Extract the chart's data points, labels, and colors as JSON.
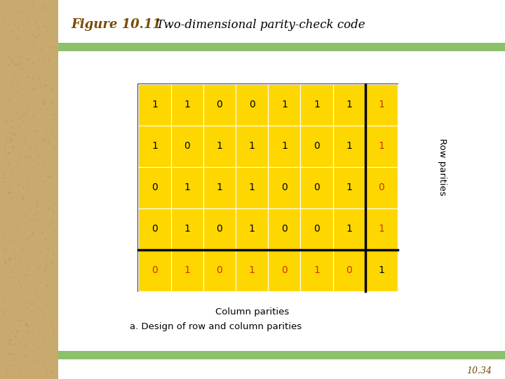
{
  "title_figure": "Figure 10.11",
  "title_desc": "Two-dimensional parity-check code",
  "page_number": "10.34",
  "caption": "a. Design of row and column parities",
  "data_rows": [
    [
      1,
      1,
      0,
      0,
      1,
      1,
      1
    ],
    [
      1,
      0,
      1,
      1,
      1,
      0,
      1
    ],
    [
      0,
      1,
      1,
      1,
      0,
      0,
      1
    ],
    [
      0,
      1,
      0,
      1,
      0,
      0,
      1
    ]
  ],
  "row_parities": [
    1,
    1,
    0,
    1
  ],
  "col_parities": [
    0,
    1,
    0,
    1,
    0,
    1,
    0
  ],
  "col_parity_last": 1,
  "data_color": "#FFD700",
  "text_black": "#000000",
  "text_red": "#CC3300",
  "bg_color": "#FFFFFF",
  "left_bar_color": "#C8A96E",
  "green_bar_color": "#8DC06A",
  "title_color": "#7B4A00",
  "num_cols": 7,
  "num_rows": 4
}
